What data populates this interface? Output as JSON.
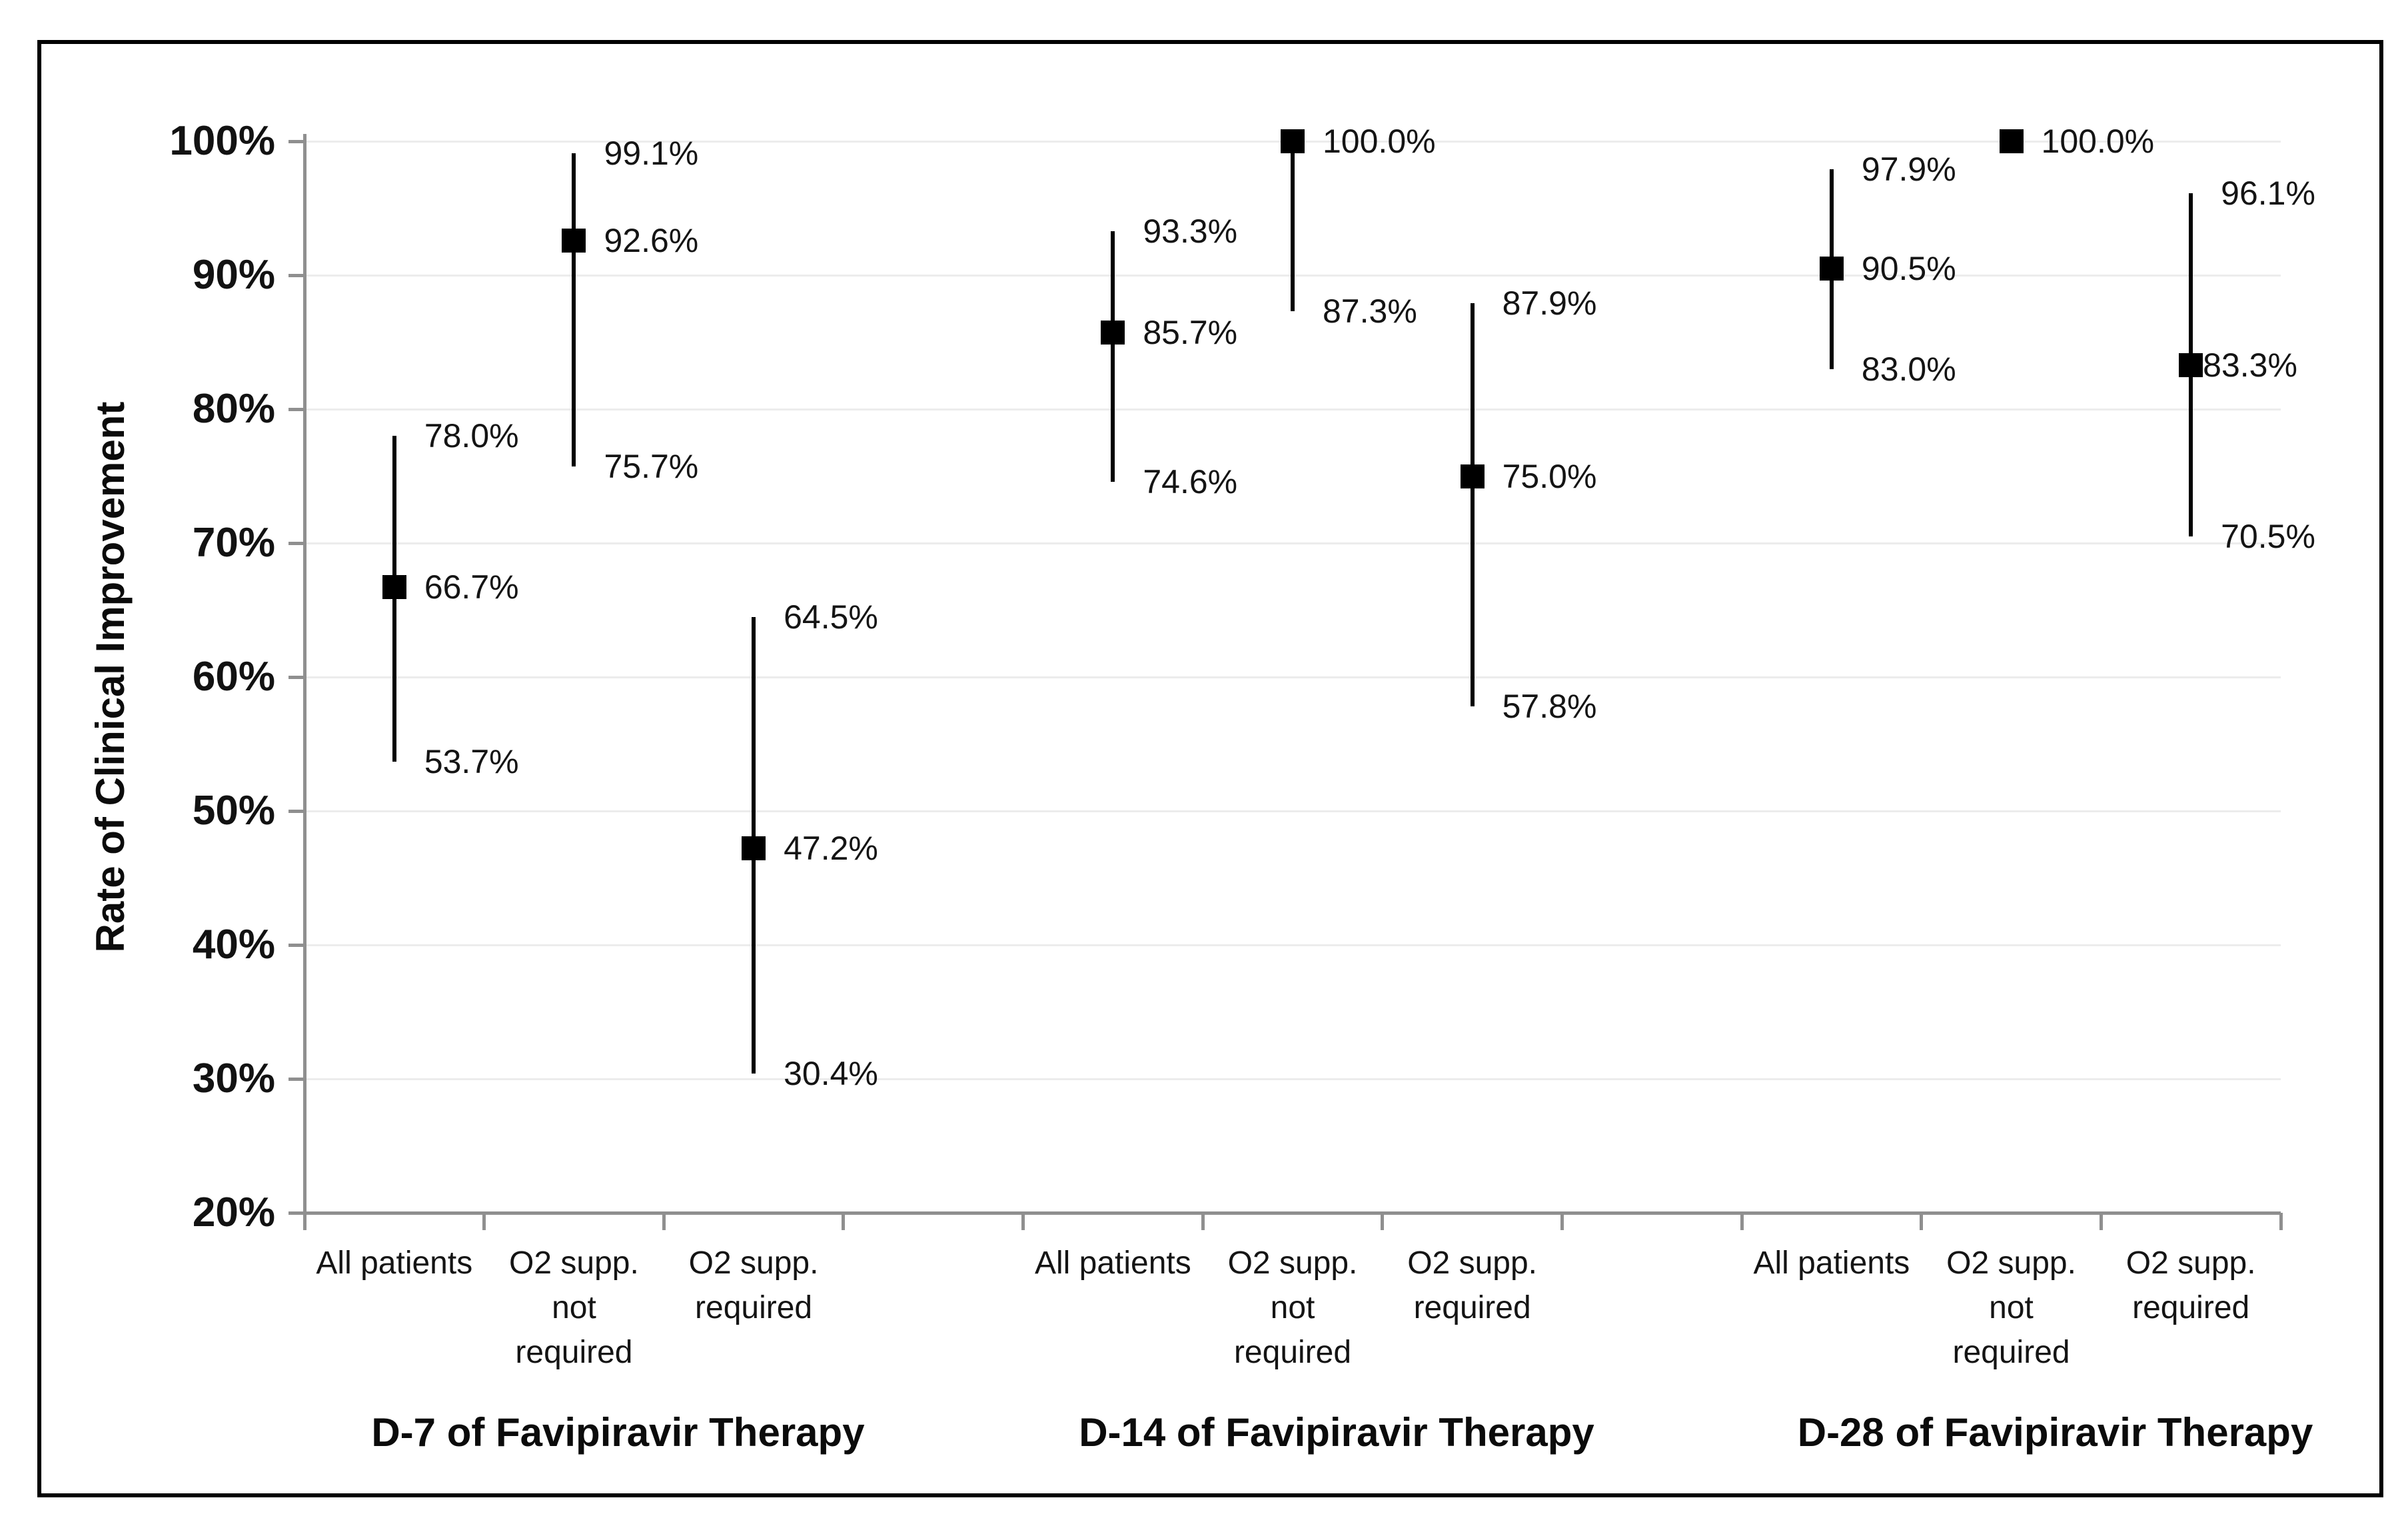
{
  "chart_data": {
    "type": "scatter",
    "subtype": "point-estimates-with-confidence-intervals",
    "title": "",
    "ylabel": "Rate of Clinical Improvement",
    "ylim": [
      20,
      100
    ],
    "ytick_step": 10,
    "ytick_labels": [
      "100%",
      "90%",
      "80%",
      "70%",
      "60%",
      "50%",
      "40%",
      "30%",
      "20%"
    ],
    "grid": "horizontal-light",
    "legend_position": "none",
    "marker_style": "filled-black-square",
    "colors": {
      "marker": "#000000",
      "error_bar": "#000000",
      "axis": "#8f8f8f",
      "gridline": "#ececec",
      "text": "#141414",
      "frame_border": "#000000",
      "background": "#ffffff"
    },
    "groups": [
      {
        "group_label": "D-7 of Favipiravir Therapy",
        "series": [
          {
            "category": "All patients",
            "category_lines": [
              "All patients"
            ],
            "value": 66.7,
            "ci_upper": 78.0,
            "ci_lower": 53.7,
            "value_label": "66.7%",
            "upper_label": "78.0%",
            "lower_label": "53.7%"
          },
          {
            "category": "O2 supp. not required",
            "category_lines": [
              "O2 supp.",
              "not",
              "required"
            ],
            "value": 92.6,
            "ci_upper": 99.1,
            "ci_lower": 75.7,
            "value_label": "92.6%",
            "upper_label": "99.1%",
            "lower_label": "75.7%"
          },
          {
            "category": "O2 supp. required",
            "category_lines": [
              "O2 supp.",
              "required"
            ],
            "value": 47.2,
            "ci_upper": 64.5,
            "ci_lower": 30.4,
            "value_label": "47.2%",
            "upper_label": "64.5%",
            "lower_label": "30.4%"
          }
        ]
      },
      {
        "group_label": "D-14 of Favipiravir Therapy",
        "series": [
          {
            "category": "All patients",
            "category_lines": [
              "All patients"
            ],
            "value": 85.7,
            "ci_upper": 93.3,
            "ci_lower": 74.6,
            "value_label": "85.7%",
            "upper_label": "93.3%",
            "lower_label": "74.6%"
          },
          {
            "category": "O2 supp. not required",
            "category_lines": [
              "O2 supp.",
              "not",
              "required"
            ],
            "value": 100.0,
            "ci_upper": null,
            "ci_lower": 87.3,
            "value_label": "100.0%",
            "upper_label": null,
            "lower_label": "87.3%"
          },
          {
            "category": "O2 supp. required",
            "category_lines": [
              "O2 supp.",
              "required"
            ],
            "value": 75.0,
            "ci_upper": 87.9,
            "ci_lower": 57.8,
            "value_label": "75.0%",
            "upper_label": "87.9%",
            "lower_label": "57.8%"
          }
        ]
      },
      {
        "group_label": "D-28 of Favipiravir Therapy",
        "series": [
          {
            "category": "All patients",
            "category_lines": [
              "All patients"
            ],
            "value": 90.5,
            "ci_upper": 97.9,
            "ci_lower": 83.0,
            "value_label": "90.5%",
            "upper_label": "97.9%",
            "lower_label": "83.0%"
          },
          {
            "category": "O2 supp. not required",
            "category_lines": [
              "O2 supp.",
              "not",
              "required"
            ],
            "value": 100.0,
            "ci_upper": null,
            "ci_lower": null,
            "value_label": "100.0%",
            "upper_label": null,
            "lower_label": null
          },
          {
            "category": "O2 supp. required",
            "category_lines": [
              "O2 supp.",
              "required"
            ],
            "value": 83.3,
            "ci_upper": 96.1,
            "ci_lower": 70.5,
            "value_label": "83.3%",
            "upper_label": "96.1%",
            "lower_label": "70.5%"
          }
        ]
      }
    ]
  }
}
